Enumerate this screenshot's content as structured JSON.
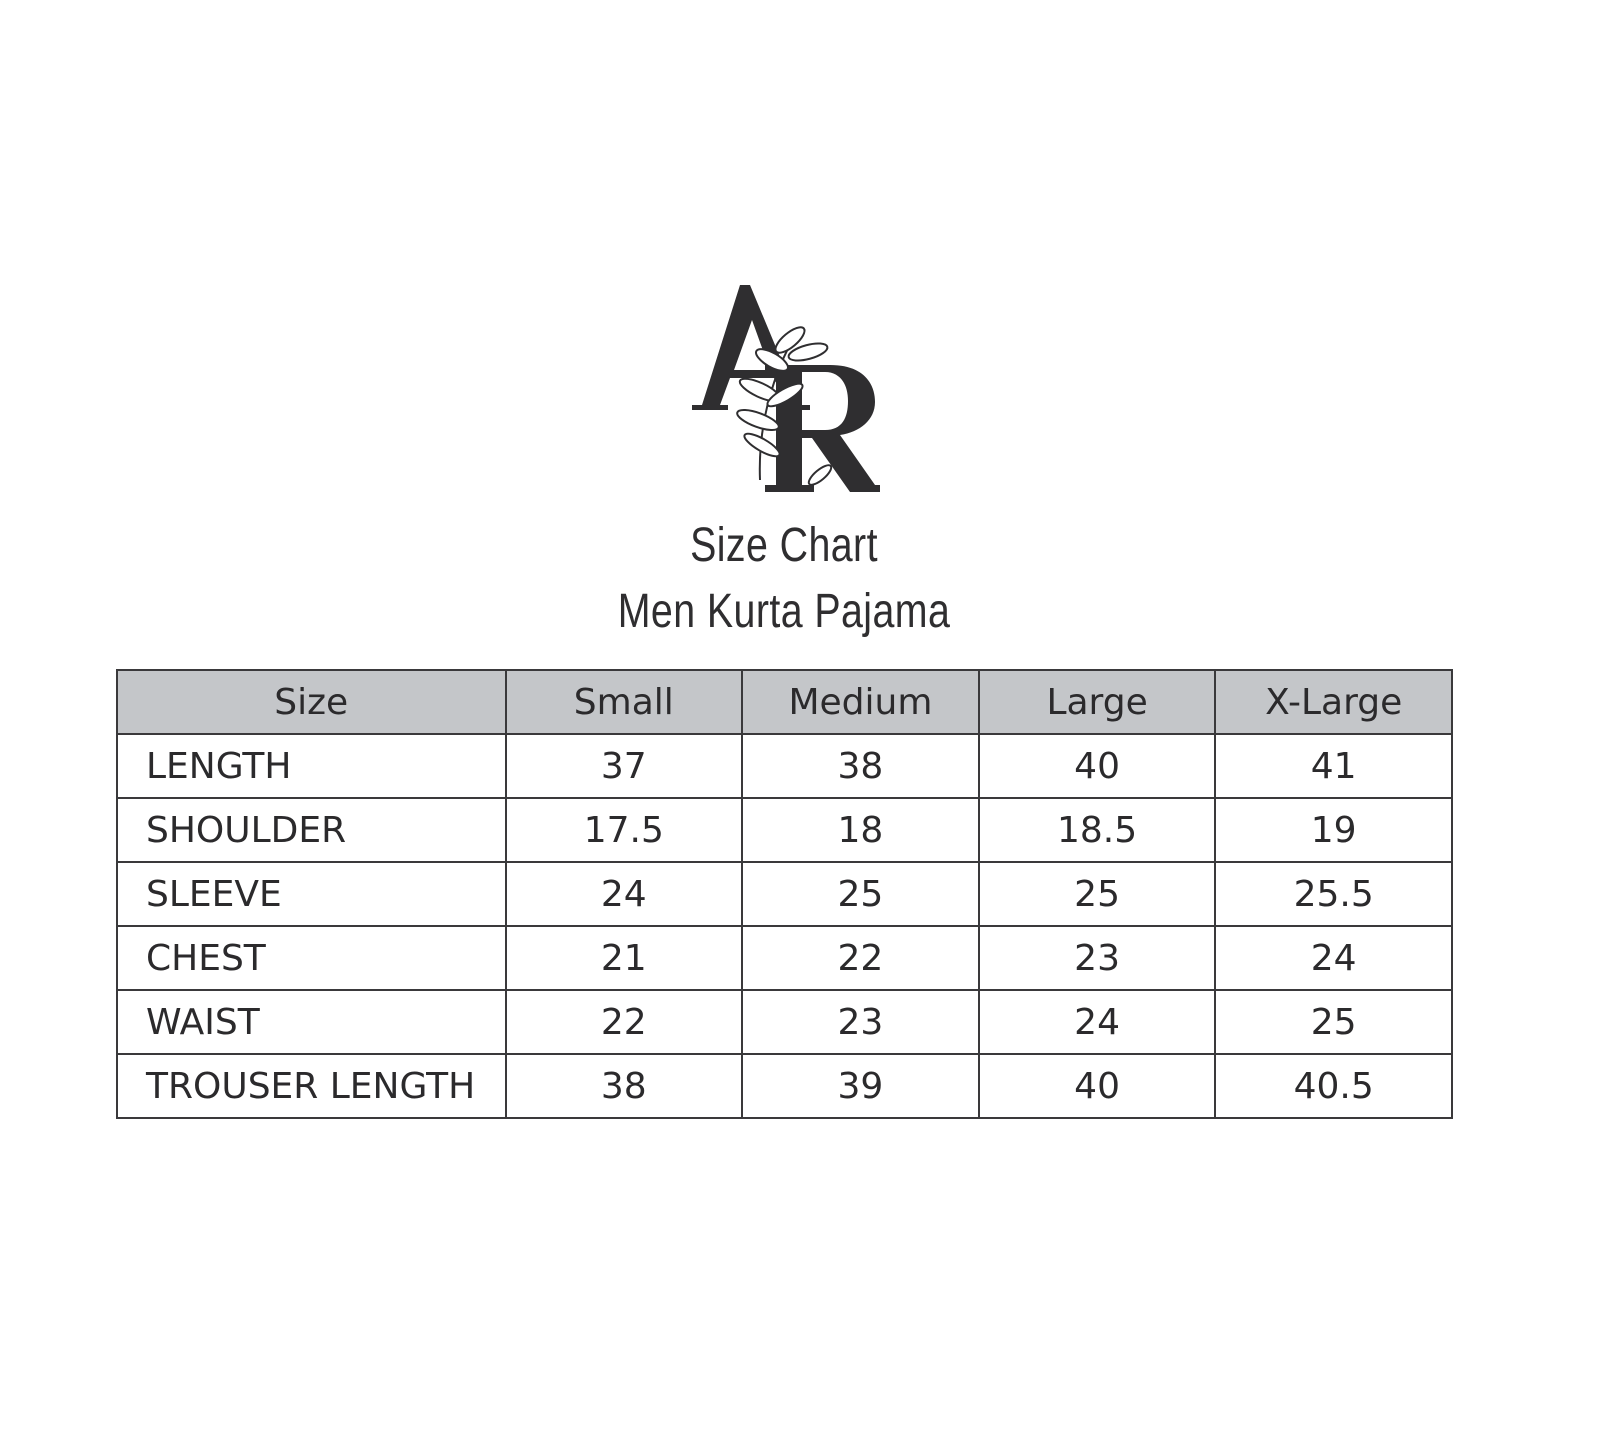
{
  "logo": {
    "text": "AR"
  },
  "title": "Size Chart",
  "subtitle": "Men Kurta Pajama",
  "table": {
    "headers": [
      "Size",
      "Small",
      "Medium",
      "Large",
      "X-Large"
    ],
    "rows": [
      {
        "label": "LENGTH",
        "values": [
          "37",
          "38",
          "40",
          "41"
        ]
      },
      {
        "label": "SHOULDER",
        "values": [
          "17.5",
          "18",
          "18.5",
          "19"
        ]
      },
      {
        "label": "SLEEVE",
        "values": [
          "24",
          "25",
          "25",
          "25.5"
        ]
      },
      {
        "label": "CHEST",
        "values": [
          "21",
          "22",
          "23",
          "24"
        ]
      },
      {
        "label": "WAIST",
        "values": [
          "22",
          "23",
          "24",
          "25"
        ]
      },
      {
        "label": "TROUSER LENGTH",
        "values": [
          "38",
          "39",
          "40",
          "40.5"
        ]
      }
    ]
  },
  "colors": {
    "header_fill": "#c4c6c9",
    "ink": "#2b2a2c"
  }
}
